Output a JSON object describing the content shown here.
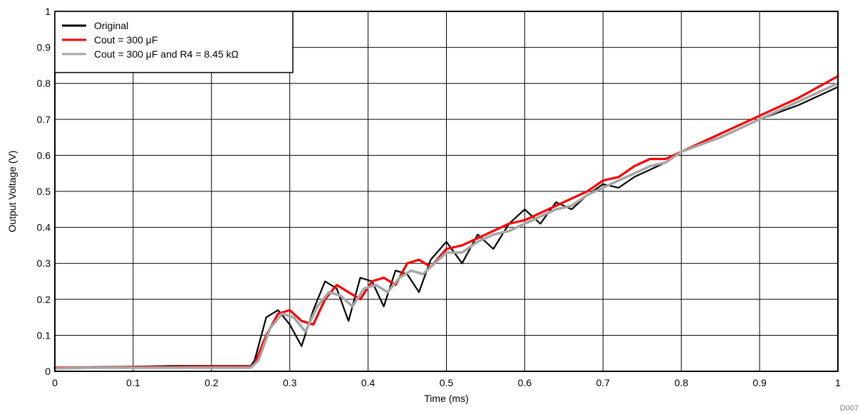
{
  "chart_data": {
    "type": "line",
    "title": "",
    "xlabel": "Time (ms)",
    "ylabel": "Output Voltage (V)",
    "xlim": [
      0,
      1
    ],
    "ylim": [
      0,
      1
    ],
    "x_ticks": [
      "0",
      "0.1",
      "0.2",
      "0.3",
      "0.4",
      "0.5",
      "0.6",
      "0.7",
      "0.8",
      "0.9",
      "1"
    ],
    "y_ticks": [
      "0",
      "0.1",
      "0.2",
      "0.3",
      "0.4",
      "0.5",
      "0.6",
      "0.7",
      "0.8",
      "0.9",
      "1"
    ],
    "grid": true,
    "legend_position": "top-left",
    "footnote": "D007",
    "series": [
      {
        "name": "Original",
        "color": "#000000",
        "x": [
          0,
          0.05,
          0.1,
          0.15,
          0.2,
          0.25,
          0.255,
          0.27,
          0.285,
          0.3,
          0.315,
          0.33,
          0.345,
          0.36,
          0.375,
          0.39,
          0.405,
          0.42,
          0.435,
          0.45,
          0.465,
          0.48,
          0.5,
          0.52,
          0.54,
          0.56,
          0.58,
          0.6,
          0.62,
          0.64,
          0.66,
          0.68,
          0.7,
          0.72,
          0.74,
          0.76,
          0.78,
          0.8,
          0.85,
          0.9,
          0.95,
          1.0
        ],
        "y": [
          0.01,
          0.012,
          0.013,
          0.015,
          0.015,
          0.015,
          0.03,
          0.15,
          0.17,
          0.13,
          0.07,
          0.17,
          0.25,
          0.23,
          0.14,
          0.26,
          0.25,
          0.18,
          0.28,
          0.27,
          0.22,
          0.31,
          0.36,
          0.3,
          0.38,
          0.34,
          0.41,
          0.45,
          0.41,
          0.47,
          0.45,
          0.49,
          0.52,
          0.51,
          0.54,
          0.56,
          0.58,
          0.61,
          0.65,
          0.7,
          0.74,
          0.79
        ]
      },
      {
        "name": "Cout = 300 μF",
        "color": "#ff0000",
        "x": [
          0,
          0.05,
          0.1,
          0.15,
          0.2,
          0.25,
          0.255,
          0.27,
          0.285,
          0.3,
          0.315,
          0.33,
          0.345,
          0.36,
          0.375,
          0.39,
          0.405,
          0.42,
          0.435,
          0.45,
          0.465,
          0.48,
          0.5,
          0.52,
          0.54,
          0.56,
          0.58,
          0.6,
          0.62,
          0.64,
          0.66,
          0.68,
          0.7,
          0.72,
          0.74,
          0.76,
          0.78,
          0.8,
          0.85,
          0.9,
          0.95,
          1.0
        ],
        "y": [
          0.01,
          0.01,
          0.012,
          0.012,
          0.013,
          0.013,
          0.02,
          0.1,
          0.16,
          0.17,
          0.14,
          0.13,
          0.2,
          0.24,
          0.22,
          0.2,
          0.25,
          0.26,
          0.24,
          0.3,
          0.31,
          0.29,
          0.34,
          0.35,
          0.37,
          0.39,
          0.41,
          0.42,
          0.44,
          0.46,
          0.48,
          0.5,
          0.53,
          0.54,
          0.57,
          0.59,
          0.59,
          0.61,
          0.66,
          0.71,
          0.76,
          0.82
        ]
      },
      {
        "name": "Cout = 300 μF and R4 = 8.45 kΩ",
        "color": "#a6a6a6",
        "x": [
          0,
          0.05,
          0.1,
          0.15,
          0.2,
          0.25,
          0.26,
          0.275,
          0.29,
          0.305,
          0.32,
          0.335,
          0.35,
          0.365,
          0.38,
          0.395,
          0.41,
          0.425,
          0.44,
          0.455,
          0.47,
          0.485,
          0.5,
          0.52,
          0.54,
          0.56,
          0.58,
          0.6,
          0.62,
          0.64,
          0.66,
          0.68,
          0.7,
          0.72,
          0.74,
          0.76,
          0.78,
          0.8,
          0.85,
          0.9,
          0.95,
          1.0
        ],
        "y": [
          0.008,
          0.01,
          0.01,
          0.01,
          0.01,
          0.01,
          0.03,
          0.12,
          0.16,
          0.15,
          0.11,
          0.18,
          0.22,
          0.21,
          0.18,
          0.23,
          0.24,
          0.22,
          0.26,
          0.28,
          0.27,
          0.3,
          0.33,
          0.33,
          0.36,
          0.38,
          0.39,
          0.41,
          0.43,
          0.45,
          0.46,
          0.49,
          0.51,
          0.53,
          0.55,
          0.57,
          0.58,
          0.61,
          0.65,
          0.7,
          0.75,
          0.8
        ]
      }
    ]
  }
}
